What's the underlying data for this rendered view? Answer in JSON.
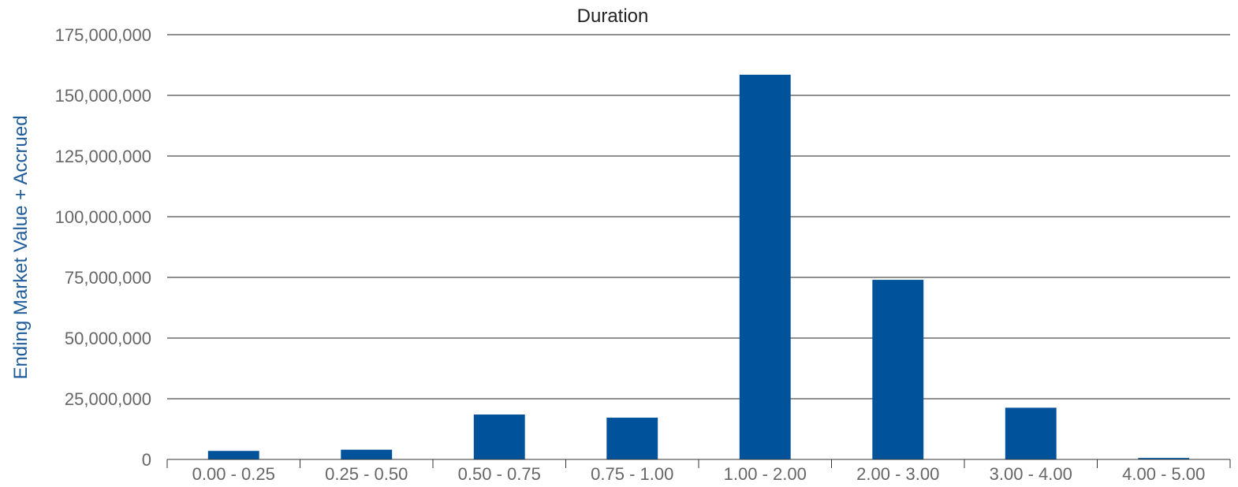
{
  "chart_data": {
    "type": "bar",
    "title": "Duration",
    "xlabel": "",
    "ylabel": "Ending Market Value + Accrued",
    "categories": [
      "0.00 - 0.25",
      "0.25 - 0.50",
      "0.50 - 0.75",
      "0.75 - 1.00",
      "1.00 - 2.00",
      "2.00 - 3.00",
      "3.00 - 4.00",
      "4.00 - 5.00"
    ],
    "values": [
      3500000,
      4000000,
      18500000,
      17200000,
      158500000,
      74000000,
      21300000,
      600000
    ],
    "ylim": [
      0,
      175000000
    ],
    "yticks": [
      0,
      25000000,
      50000000,
      75000000,
      100000000,
      125000000,
      150000000,
      175000000
    ],
    "ytick_labels": [
      "0",
      "25,000,000",
      "50,000,000",
      "75,000,000",
      "100,000,000",
      "125,000,000",
      "150,000,000",
      "175,000,000"
    ],
    "grid": true,
    "legend": "none",
    "colors": {
      "bar": "#00539b",
      "gridline": "#222222",
      "ylabel": "#1f5c99",
      "ticktext": "#666666",
      "title": "#222222"
    }
  }
}
